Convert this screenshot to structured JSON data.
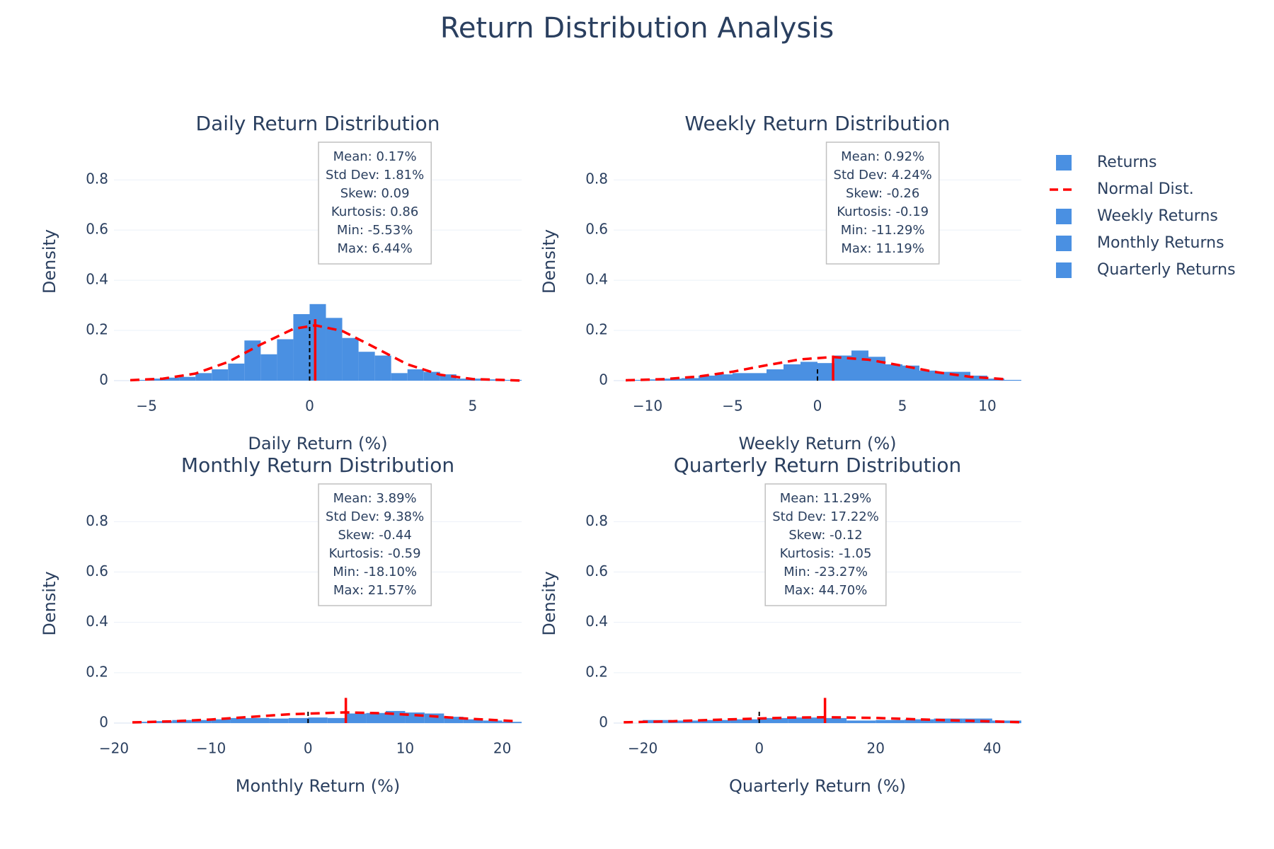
{
  "title": "Return Distribution Analysis",
  "chart_data": [
    {
      "type": "histogram",
      "title": "Daily Return Distribution",
      "xlabel": "Daily Return (%)",
      "ylabel": "Density",
      "xlim": [
        -6,
        6.5
      ],
      "ylim": [
        0,
        0.95
      ],
      "xticks": [
        {
          "value": -5,
          "label": "−5"
        },
        0,
        5
      ],
      "yticks": [
        0,
        0.2,
        0.4,
        0.6,
        0.8
      ],
      "grid": true,
      "bins": [
        -5.5,
        -5,
        -4.5,
        -4,
        -3.5,
        -3,
        -2.5,
        -2,
        -1.5,
        -1,
        -0.5,
        0,
        0.5,
        1,
        1.5,
        2,
        2.5,
        3,
        3.5,
        4,
        4.5,
        5,
        5.5,
        6,
        6.5
      ],
      "series": [
        {
          "name": "Returns",
          "color": "#4a90e2",
          "values": [
            0.003,
            0.008,
            0.012,
            0.015,
            0.03,
            0.045,
            0.068,
            0.16,
            0.105,
            0.165,
            0.265,
            0.305,
            0.25,
            0.17,
            0.115,
            0.1,
            0.03,
            0.045,
            0.035,
            0.025,
            0.008,
            0.008,
            0.005,
            0.003
          ]
        },
        {
          "name": "Normal Dist.",
          "type": "line",
          "dash": true,
          "color": "#ff0000",
          "x": [
            -5.5,
            -4.5,
            -3.5,
            -2.5,
            -1.5,
            -0.5,
            0.17,
            1,
            2,
            3,
            4,
            5,
            6.44
          ],
          "values": [
            0.0016,
            0.0079,
            0.0282,
            0.0743,
            0.144,
            0.206,
            0.2204,
            0.198,
            0.132,
            0.0649,
            0.0235,
            0.0063,
            0.0005
          ]
        }
      ],
      "vlines": [
        {
          "x": 0,
          "height": 0.24,
          "color": "#000000",
          "dash": true
        },
        {
          "x": 0.17,
          "height": 0.245,
          "color": "#ff0000"
        }
      ],
      "annotation": [
        "Mean: 0.17%",
        "Std Dev: 1.81%",
        "Skew: 0.09",
        "Kurtosis: 0.86",
        "Min: -5.53%",
        "Max: 6.44%"
      ]
    },
    {
      "type": "histogram",
      "title": "Weekly Return Distribution",
      "xlabel": "Weekly Return (%)",
      "ylabel": "Density",
      "xlim": [
        -12,
        12
      ],
      "ylim": [
        0,
        0.95
      ],
      "xticks": [
        {
          "value": -10,
          "label": "−10"
        },
        {
          "value": -5,
          "label": "−5"
        },
        0,
        5,
        10
      ],
      "yticks": [
        0,
        0.2,
        0.4,
        0.6,
        0.8
      ],
      "grid": true,
      "bins": [
        -11,
        -10,
        -9,
        -8,
        -7,
        -6,
        -5,
        -4,
        -3,
        -2,
        -1,
        0,
        1,
        2,
        3,
        4,
        5,
        6,
        7,
        8,
        9,
        10,
        11,
        12
      ],
      "series": [
        {
          "name": "Weekly Returns",
          "color": "#4a90e2",
          "values": [
            0.003,
            0.005,
            0.008,
            0.01,
            0.02,
            0.025,
            0.03,
            0.03,
            0.045,
            0.065,
            0.075,
            0.07,
            0.1,
            0.12,
            0.095,
            0.065,
            0.06,
            0.04,
            0.035,
            0.035,
            0.02,
            0.008,
            0.003
          ]
        },
        {
          "type": "line",
          "dash": true,
          "color": "#ff0000",
          "x": [
            -11.29,
            -9,
            -7,
            -5,
            -3,
            -1,
            0.92,
            3,
            5,
            7,
            9,
            11.19
          ],
          "values": [
            0.0015,
            0.0061,
            0.0164,
            0.0355,
            0.0614,
            0.0849,
            0.0941,
            0.0834,
            0.0592,
            0.0337,
            0.0153,
            0.005
          ]
        }
      ],
      "vlines": [
        {
          "x": 0,
          "height": 0.05,
          "color": "#000000",
          "dash": true
        },
        {
          "x": 0.92,
          "height": 0.1,
          "color": "#ff0000"
        }
      ],
      "annotation": [
        "Mean: 0.92%",
        "Std Dev: 4.24%",
        "Skew: -0.26",
        "Kurtosis: -0.19",
        "Min: -11.29%",
        "Max: 11.19%"
      ]
    },
    {
      "type": "histogram",
      "title": "Monthly Return Distribution",
      "xlabel": "Monthly Return (%)",
      "ylabel": "Density",
      "xlim": [
        -20,
        22
      ],
      "ylim": [
        0,
        0.95
      ],
      "xticks": [
        {
          "value": -20,
          "label": "−20"
        },
        {
          "value": -10,
          "label": "−10"
        },
        0,
        10,
        20
      ],
      "yticks": [
        0,
        0.2,
        0.4,
        0.6,
        0.8
      ],
      "grid": true,
      "bins": [
        -18,
        -16,
        -14,
        -12,
        -10,
        -8,
        -6,
        -4,
        -2,
        0,
        2,
        4,
        6,
        8,
        10,
        12,
        14,
        16,
        18,
        20,
        22
      ],
      "series": [
        {
          "name": "Monthly Returns",
          "color": "#4a90e2",
          "values": [
            0.005,
            0.008,
            0.012,
            0.012,
            0.015,
            0.02,
            0.02,
            0.018,
            0.02,
            0.022,
            0.02,
            0.038,
            0.04,
            0.048,
            0.042,
            0.038,
            0.025,
            0.015,
            0.01,
            0.005
          ]
        },
        {
          "type": "line",
          "dash": true,
          "color": "#ff0000",
          "x": [
            -18.1,
            -14,
            -10,
            -6,
            -2,
            3.89,
            8,
            12,
            16,
            21.57
          ],
          "values": [
            0.0027,
            0.0069,
            0.0142,
            0.0244,
            0.0349,
            0.0425,
            0.0386,
            0.0293,
            0.0185,
            0.0072
          ]
        }
      ],
      "vlines": [
        {
          "x": 0,
          "height": 0.045,
          "color": "#000000",
          "dash": true
        },
        {
          "x": 3.89,
          "height": 0.1,
          "color": "#ff0000"
        }
      ],
      "annotation": [
        "Mean: 3.89%",
        "Std Dev: 9.38%",
        "Skew: -0.44",
        "Kurtosis: -0.59",
        "Min: -18.10%",
        "Max: 21.57%"
      ]
    },
    {
      "type": "histogram",
      "title": "Quarterly Return Distribution",
      "xlabel": "Quarterly Return (%)",
      "ylabel": "Density",
      "xlim": [
        -25,
        45
      ],
      "ylim": [
        0,
        0.95
      ],
      "xticks": [
        {
          "value": -20,
          "label": "−20"
        },
        0,
        20,
        40
      ],
      "yticks": [
        0,
        0.2,
        0.4,
        0.6,
        0.8
      ],
      "grid": true,
      "bins": [
        -20,
        -15,
        -10,
        -5,
        0,
        5,
        10,
        15,
        20,
        25,
        30,
        35,
        40,
        45
      ],
      "series": [
        {
          "name": "Quarterly Returns",
          "color": "#4a90e2",
          "values": [
            0.012,
            0.01,
            0.012,
            0.015,
            0.02,
            0.022,
            0.02,
            0.01,
            0.012,
            0.015,
            0.018,
            0.018,
            0.01
          ]
        },
        {
          "type": "line",
          "dash": true,
          "color": "#ff0000",
          "x": [
            -23.27,
            -15,
            -5,
            5,
            11.29,
            20,
            30,
            44.7
          ],
          "values": [
            0.0031,
            0.0072,
            0.0148,
            0.0217,
            0.0232,
            0.0204,
            0.0128,
            0.0035
          ]
        }
      ],
      "vlines": [
        {
          "x": 0,
          "height": 0.045,
          "color": "#000000",
          "dash": true
        },
        {
          "x": 11.29,
          "height": 0.1,
          "color": "#ff0000"
        }
      ],
      "annotation": [
        "Mean: 11.29%",
        "Std Dev: 17.22%",
        "Skew: -0.12",
        "Kurtosis: -1.05",
        "Min: -23.27%",
        "Max: 44.70%"
      ]
    }
  ]
}
